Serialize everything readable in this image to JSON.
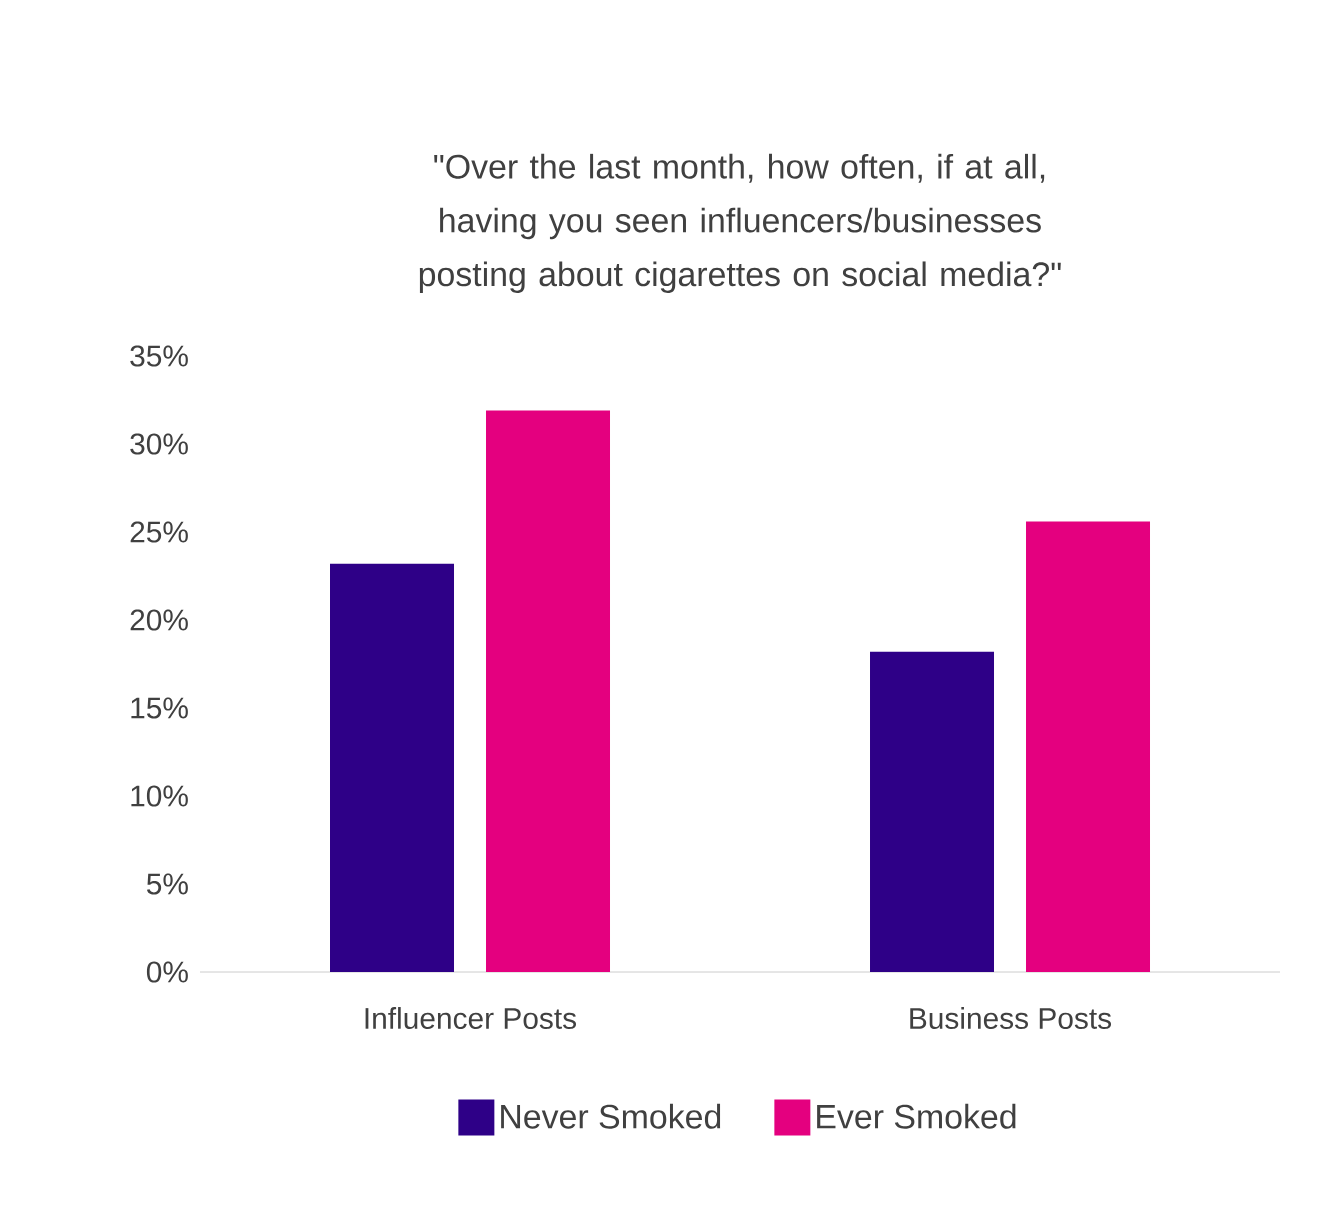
{
  "chart_data": {
    "type": "bar",
    "title": "\"Over the last month, how often, if at all, having you seen influencers/businesses posting about cigarettes on social media?\"",
    "categories": [
      "Influencer Posts",
      "Business Posts"
    ],
    "series": [
      {
        "name": "Never Smoked",
        "color": "#2e0087",
        "values": [
          23.2,
          18.2
        ]
      },
      {
        "name": "Ever Smoked",
        "color": "#e4007f",
        "values": [
          31.9,
          25.6
        ]
      }
    ],
    "ylim": [
      0,
      35
    ],
    "yticks": [
      {
        "value": 0,
        "label": "0%"
      },
      {
        "value": 5,
        "label": "5%"
      },
      {
        "value": 10,
        "label": "10%"
      },
      {
        "value": 15,
        "label": "15%"
      },
      {
        "value": 20,
        "label": "20%"
      },
      {
        "value": 25,
        "label": "25%"
      },
      {
        "value": 30,
        "label": "30%"
      },
      {
        "value": 35,
        "label": "35%"
      }
    ],
    "grid": false,
    "legend": "bottom"
  }
}
